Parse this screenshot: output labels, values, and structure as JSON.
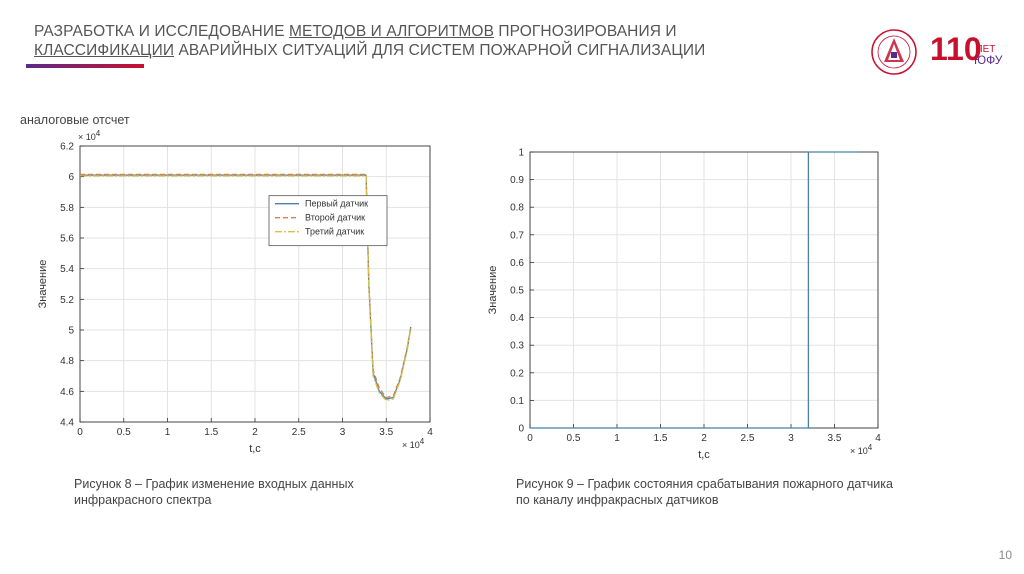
{
  "slide": {
    "title_line1_a": "РАЗРАБОТКА И ИССЛЕДОВАНИЕ ",
    "title_line1_b": "МЕТОДОВ И АЛГОРИТМОВ",
    "title_line1_c": " ПРОГНОЗИРОВАНИЯ И",
    "title_line2_a": "КЛАССИФИКАЦИИ",
    "title_line2_b": " АВАРИЙНЫХ СИТУАЦИЙ ДЛЯ СИСТЕМ ПОЖАРНОЙ СИГНАЛИЗАЦИИ",
    "side_label": "аналоговые отсчет",
    "caption_left_1": "Рисунок 8 – График изменение входных данных",
    "caption_left_2": "инфракрасного спектра",
    "caption_right_1": "Рисунок 9 – График состояния срабатывания пожарного датчика",
    "caption_right_2": "по каналу инфракрасных датчиков",
    "page_number": "10",
    "logo_text_110": "110",
    "logo_text_let": "ЛЕТ",
    "logo_text_yufu": "ЮФУ",
    "accent_red": "#c8102e",
    "accent_purple": "#5a2a8a",
    "emblem_icon": "university-emblem-icon"
  },
  "chart_data": [
    {
      "type": "line",
      "xlabel": "t,c",
      "ylabel": "Значение",
      "x_exponent": "× 10^4",
      "y_exponent": "× 10^4",
      "xlim": [
        0,
        4
      ],
      "ylim": [
        4.4,
        6.2
      ],
      "x_ticks": [
        "0",
        "0.5",
        "1",
        "1.5",
        "2",
        "2.5",
        "3",
        "3.5",
        "4"
      ],
      "y_ticks": [
        "4.4",
        "4.6",
        "4.8",
        "5",
        "5.2",
        "5.4",
        "5.6",
        "5.8",
        "6",
        "6.2"
      ],
      "grid": true,
      "legend_position": "center-right",
      "series": [
        {
          "name": "Первый датчик",
          "color": "#4a7fa8",
          "dash": "",
          "x": [
            0,
            3.27,
            3.3,
            3.35,
            3.42,
            3.5,
            3.58,
            3.66,
            3.74,
            3.78
          ],
          "y": [
            6.01,
            6.01,
            5.3,
            4.72,
            4.6,
            4.55,
            4.56,
            4.68,
            4.88,
            5.02
          ]
        },
        {
          "name": "Второй датчик",
          "color": "#d9814a",
          "dash": "5,3",
          "x": [
            0,
            3.27,
            3.3,
            3.35,
            3.42,
            3.5,
            3.58,
            3.66,
            3.74,
            3.78
          ],
          "y": [
            6.015,
            6.015,
            5.32,
            4.74,
            4.62,
            4.56,
            4.57,
            4.69,
            4.89,
            5.02
          ]
        },
        {
          "name": "Третий датчик",
          "color": "#d4c24a",
          "dash": "7,2,2,2",
          "x": [
            0,
            3.27,
            3.3,
            3.35,
            3.42,
            3.5,
            3.58,
            3.66,
            3.74,
            3.78
          ],
          "y": [
            6.005,
            6.005,
            5.28,
            4.7,
            4.59,
            4.54,
            4.55,
            4.67,
            4.87,
            5.01
          ]
        }
      ]
    },
    {
      "type": "line",
      "xlabel": "t,c",
      "ylabel": "Значение",
      "x_exponent": "× 10^4",
      "xlim": [
        0,
        4
      ],
      "ylim": [
        0,
        1
      ],
      "x_ticks": [
        "0",
        "0.5",
        "1",
        "1.5",
        "2",
        "2.5",
        "3",
        "3.5",
        "4"
      ],
      "y_ticks": [
        "0",
        "0.1",
        "0.2",
        "0.3",
        "0.4",
        "0.5",
        "0.6",
        "0.7",
        "0.8",
        "0.9",
        "1"
      ],
      "grid": true,
      "series": [
        {
          "color": "#4a7fa8",
          "dash": "",
          "x": [
            0,
            3.2,
            3.2,
            3.8
          ],
          "y": [
            0,
            0,
            1,
            1
          ]
        }
      ]
    }
  ]
}
